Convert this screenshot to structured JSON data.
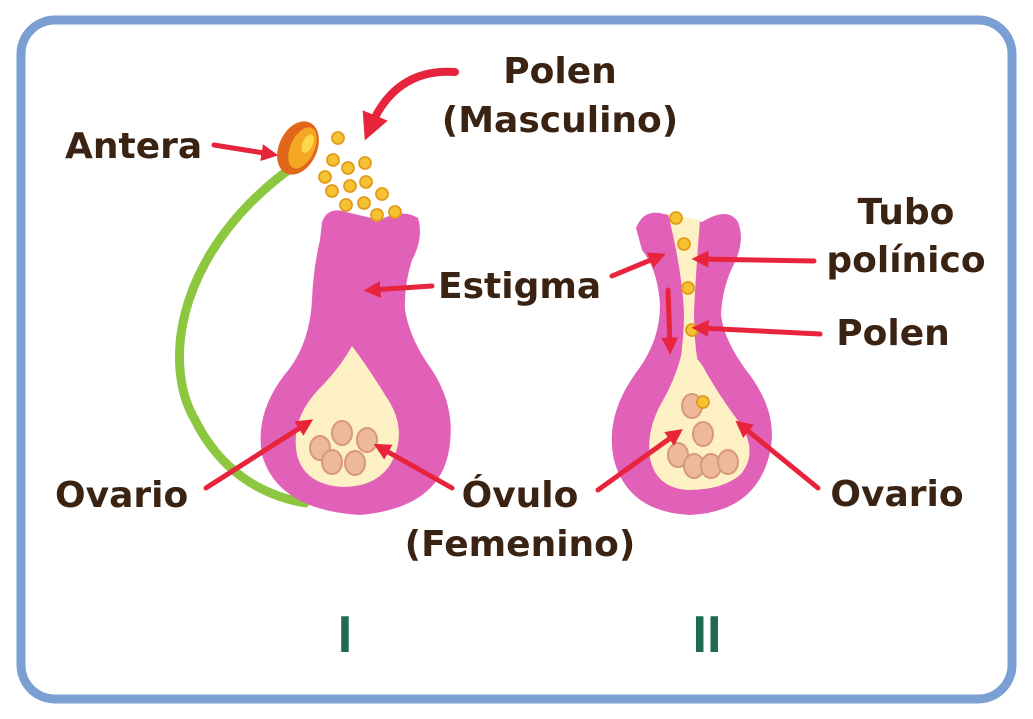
{
  "colors": {
    "frame": "#7b9fd2",
    "label_text": "#3b2314",
    "arrow": "#e8243c",
    "pistil": "#e160b8",
    "ovary_inner": "#fdf0c4",
    "ovule": "#eeb99a",
    "ovule_stroke": "#d7987a",
    "pollen": "#f6c234",
    "pollen_stroke": "#e39a18",
    "filament": "#8dc63f",
    "anther_outer": "#e0661a",
    "anther_inner": "#f5a623",
    "panel_number": "#1f6b4e"
  },
  "icons": [
    "anther-icon",
    "pollen-grain-icon",
    "pistil-icon",
    "ovule-icon",
    "pointer-arrow-icon",
    "curved-arrow-icon"
  ],
  "panel_I": {
    "number": "I",
    "labels": {
      "antera": "Antera",
      "polen_line1": "Polen",
      "polen_line2": "(Masculino)",
      "estigma": "Estigma",
      "ovario": "Ovario",
      "ovulo_line1": "Óvulo",
      "ovulo_line2": "(Femenino)"
    }
  },
  "panel_II": {
    "number": "II",
    "labels": {
      "tubo_line1": "Tubo",
      "tubo_line2": "polínico",
      "polen": "Polen",
      "ovario": "Ovario"
    }
  }
}
